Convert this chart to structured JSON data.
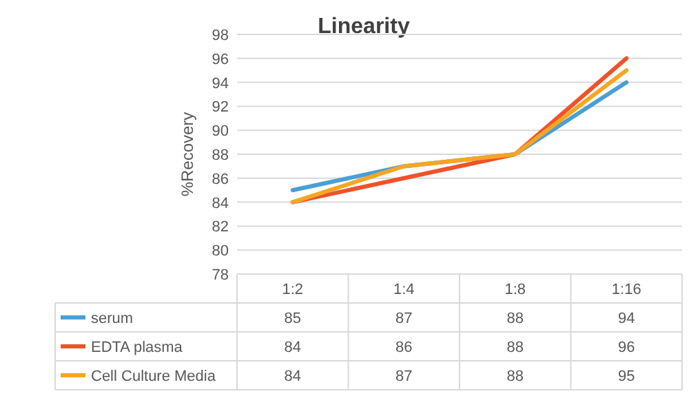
{
  "chart_data": {
    "type": "line",
    "title": "Linearity",
    "ylabel": "%Recovery",
    "categories": [
      "1:2",
      "1:4",
      "1:8",
      "1:16"
    ],
    "series": [
      {
        "name": "serum",
        "color": "#4a9fd6",
        "values": [
          85,
          87,
          88,
          94
        ]
      },
      {
        "name": "EDTA plasma",
        "color": "#f0522a",
        "values": [
          84,
          86,
          88,
          96
        ]
      },
      {
        "name": "Cell Culture Media",
        "color": "#f5a623",
        "values": [
          84,
          87,
          88,
          95
        ]
      }
    ],
    "ylim": [
      78,
      98
    ],
    "yticks": [
      78,
      80,
      82,
      84,
      86,
      88,
      90,
      92,
      94,
      96,
      98
    ],
    "grid": "y",
    "legend": "bottom",
    "data_labels": true,
    "line_style": "solid"
  }
}
